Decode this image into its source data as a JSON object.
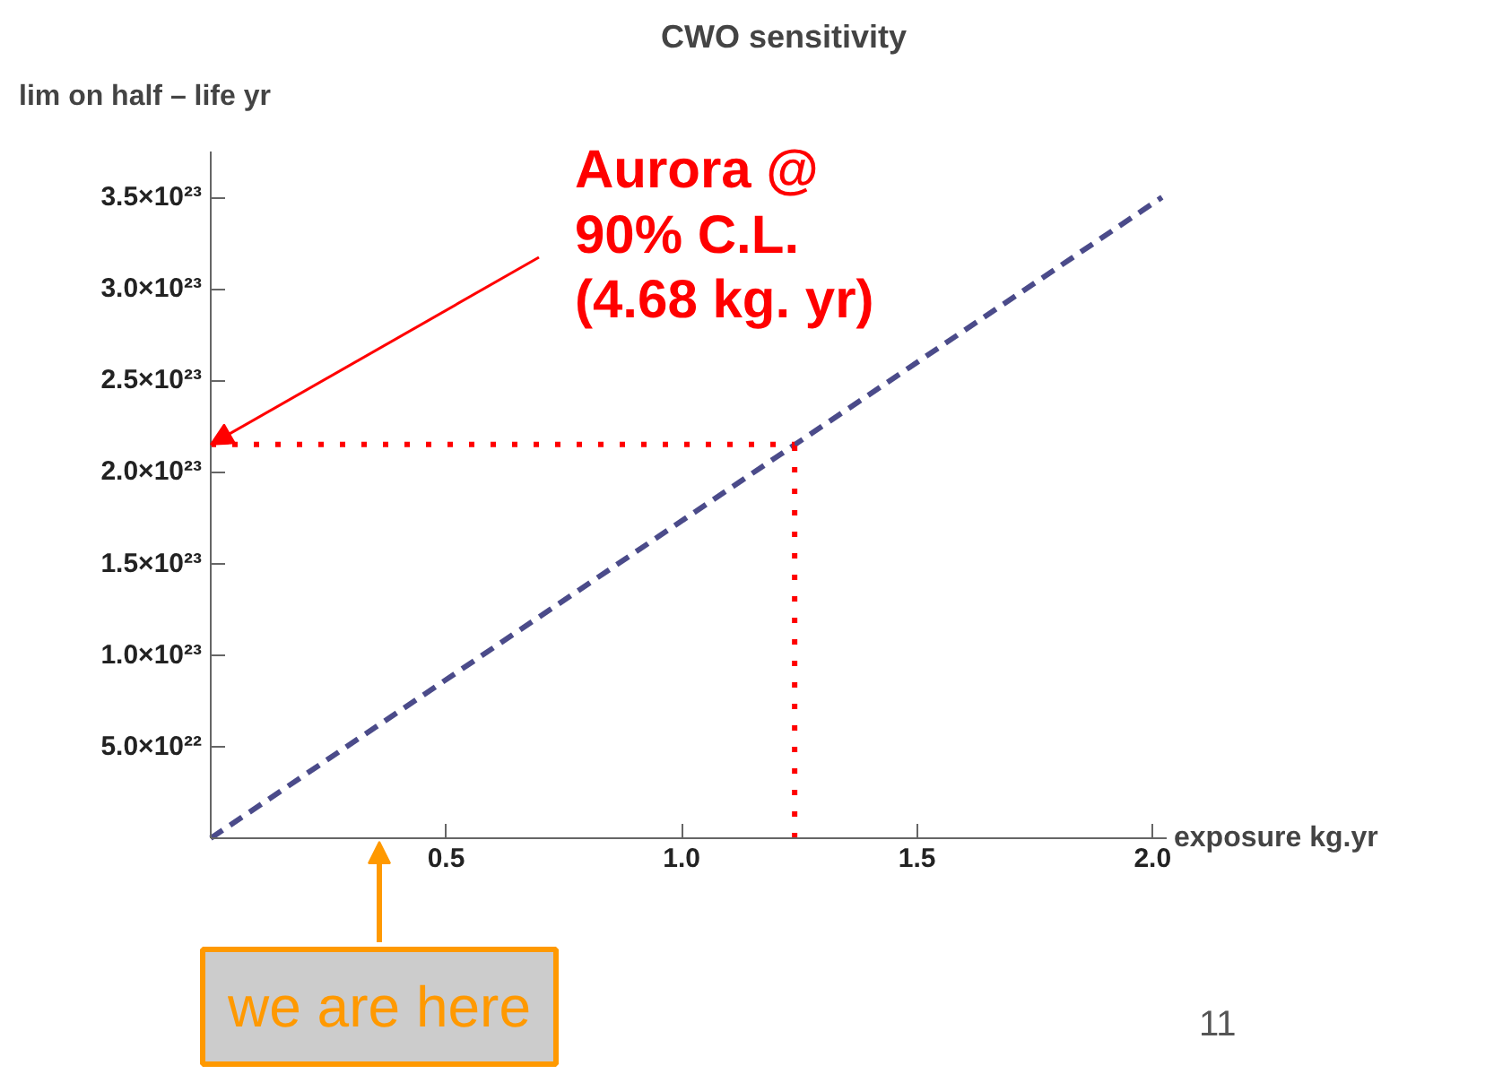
{
  "chart_data": {
    "type": "line",
    "title": "CWO sensitivity",
    "ylabel": "lim on half – life yr",
    "xlabel": "exposure kg.yr",
    "series": [
      {
        "color": "#4b4b8a",
        "x": [
          0,
          2.02
        ],
        "values": [
          0,
          3.5e+23
        ],
        "line_style": "dashed"
      }
    ],
    "xlim": [
      0,
      2.03
    ],
    "ylim": [
      0,
      3.75e+23
    ],
    "xticks": [
      0.5,
      {
        "value": 1,
        "label": "1.0"
      },
      1.5,
      {
        "value": 2,
        "label": "2.0"
      }
    ],
    "yticks": [
      {
        "value": 5e+22,
        "label": "5.0×10²²"
      },
      {
        "value": 1e+23,
        "label": "1.0×10²³"
      },
      {
        "value": 1.5e+23,
        "label": "1.5×10²³"
      },
      {
        "value": 2e+23,
        "label": "2.0×10²³"
      },
      {
        "value": 2.5e+23,
        "label": "2.5×10²³"
      },
      {
        "value": 3e+23,
        "label": "3.0×10²³"
      },
      {
        "value": 3.5e+23,
        "label": "3.5×10²³"
      }
    ],
    "ref_lines": [
      {
        "axis": "y",
        "value": 2.15e+23,
        "color": "#ff0000",
        "line_style": "dotted"
      },
      {
        "axis": "x",
        "value": 1.24,
        "color": "#ff0000",
        "line_style": "dotted"
      }
    ],
    "annotations": [
      {
        "text": "Aurora @\n90% C.L.\n(4.68 kg. yr)",
        "x": 0,
        "y": 2.15e+23
      },
      "we are here",
      "11"
    ],
    "grid": false
  }
}
